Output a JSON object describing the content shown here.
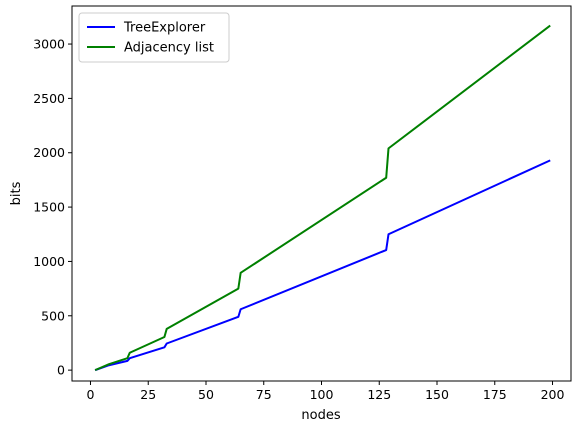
{
  "chart_data": {
    "type": "line",
    "xlabel": "nodes",
    "ylabel": "bits",
    "xlim": [
      -8,
      208
    ],
    "ylim": [
      -100,
      3350
    ],
    "xticks": [
      0,
      25,
      50,
      75,
      100,
      125,
      150,
      175,
      200
    ],
    "yticks": [
      0,
      500,
      1000,
      1500,
      2000,
      2500,
      3000
    ],
    "legend_position": "top-left",
    "grid": false,
    "series": [
      {
        "name": "TreeExplorer",
        "color": "#0000ff",
        "points": [
          [
            2,
            0
          ],
          [
            8,
            45
          ],
          [
            16,
            85
          ],
          [
            17,
            110
          ],
          [
            32,
            210
          ],
          [
            33,
            245
          ],
          [
            64,
            490
          ],
          [
            65,
            560
          ],
          [
            128,
            1105
          ],
          [
            129,
            1250
          ],
          [
            199,
            1930
          ]
        ]
      },
      {
        "name": "Adjacency list",
        "color": "#008000",
        "points": [
          [
            2,
            0
          ],
          [
            8,
            55
          ],
          [
            16,
            110
          ],
          [
            17,
            160
          ],
          [
            32,
            305
          ],
          [
            33,
            380
          ],
          [
            64,
            750
          ],
          [
            65,
            895
          ],
          [
            128,
            1770
          ],
          [
            129,
            2040
          ],
          [
            199,
            3170
          ]
        ]
      }
    ]
  }
}
